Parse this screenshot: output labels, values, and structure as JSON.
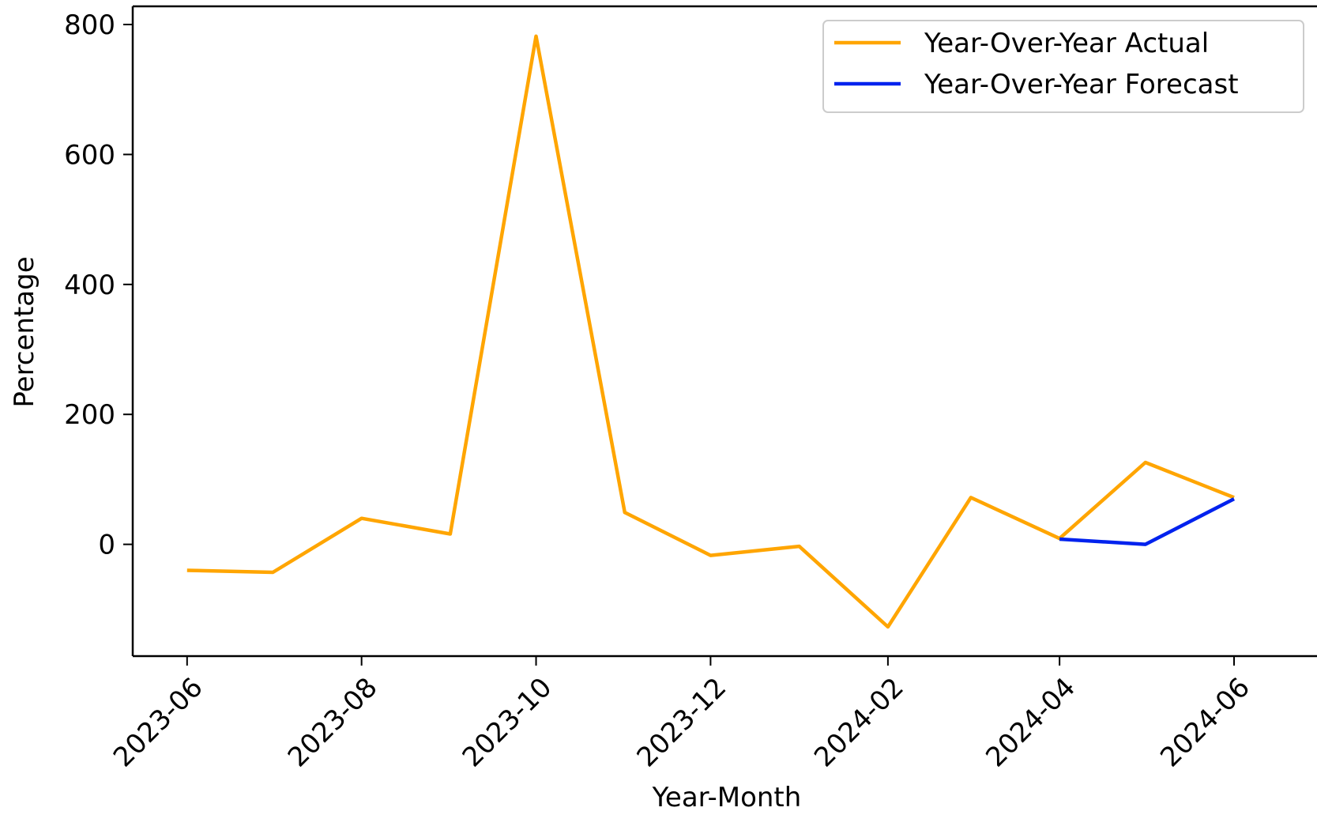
{
  "chart_data": {
    "type": "line",
    "title": "",
    "xlabel": "Year-Month",
    "ylabel": "Percentage",
    "x_tick_labels": [
      "2023-06",
      "2023-08",
      "2023-10",
      "2023-12",
      "2024-02",
      "2024-04",
      "2024-06"
    ],
    "y_ticks": [
      0,
      200,
      400,
      600,
      800
    ],
    "ylim": [
      -172,
      828
    ],
    "xlim": [
      "2023-05-13",
      "2024-06-30"
    ],
    "grid": false,
    "legend_position": "top-right",
    "series": [
      {
        "name": "Year-Over-Year Actual",
        "color": "#FFA500",
        "x": [
          "2023-06-01",
          "2023-07-01",
          "2023-08-01",
          "2023-09-01",
          "2023-10-01",
          "2023-11-01",
          "2023-12-01",
          "2024-01-01",
          "2024-02-01",
          "2024-03-01",
          "2024-04-01",
          "2024-05-01",
          "2024-06-01"
        ],
        "values": [
          -40,
          -43,
          40,
          16,
          782,
          49,
          -17,
          -3,
          -127,
          72,
          9,
          126,
          72
        ]
      },
      {
        "name": "Year-Over-Year Forecast",
        "color": "#0022EE",
        "x": [
          "2024-04-01",
          "2024-05-01",
          "2024-06-01"
        ],
        "values": [
          8,
          0,
          70
        ]
      }
    ]
  }
}
